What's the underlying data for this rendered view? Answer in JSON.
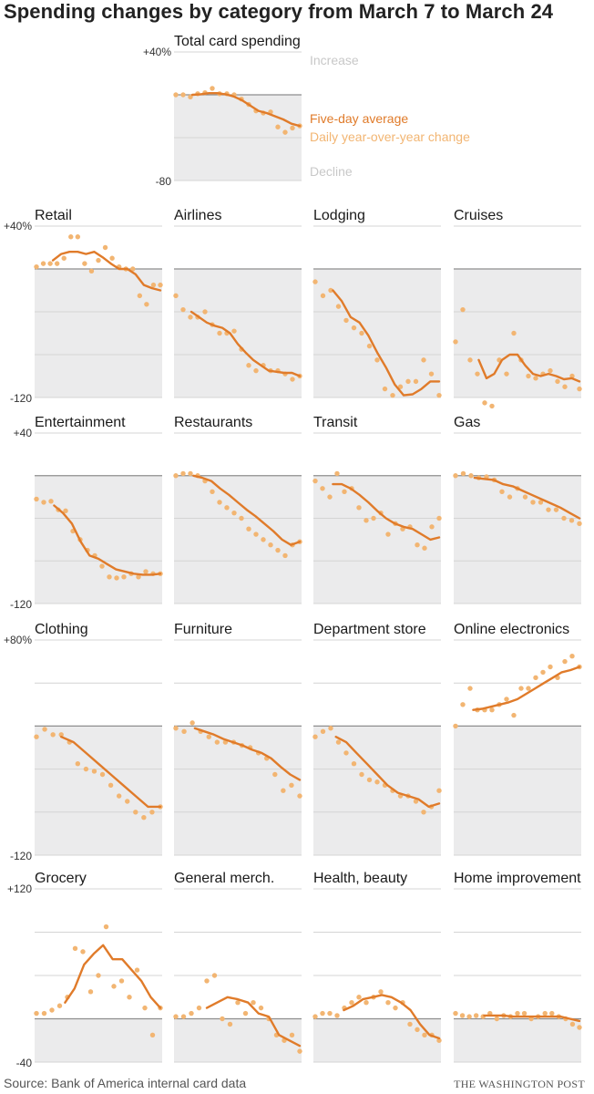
{
  "title": "Spending changes by category from March 7 to March 24",
  "source": "Source: Bank of America internal card data",
  "credit": "THE WASHINGTON POST",
  "colors": {
    "average_line": "#e07b2a",
    "daily_dots": "#f2b572",
    "decline_bg": "#ebebec",
    "zero_line": "#8e8e8e",
    "grid": "#d4d4d4",
    "legend_muted": "#c8c8c8"
  },
  "legend": {
    "increase": "Increase",
    "average": "Five-day average",
    "daily": "Daily year-over-year change",
    "decline": "Decline"
  },
  "chart_data": [
    {
      "type": "line",
      "title": "Total card spending",
      "ylim": [
        -80,
        40
      ],
      "ticks": [
        "+40%",
        "-80"
      ],
      "daily": [
        0,
        0,
        -2,
        1,
        2,
        6,
        1,
        1,
        0,
        -4,
        -9,
        -15,
        -17,
        -16,
        -30,
        -35,
        -31,
        -29
      ],
      "avg": [
        null,
        null,
        0,
        0.5,
        1.5,
        1.5,
        0.5,
        -1.5,
        -5,
        -10,
        -15,
        -17,
        -20,
        -23,
        -27,
        -29
      ]
    },
    {
      "type": "line",
      "title": "Retail",
      "ylim": [
        -120,
        40
      ],
      "ticks": [
        "+40%",
        "-120"
      ],
      "daily": [
        2,
        5,
        5,
        5,
        10,
        30,
        30,
        5,
        -2,
        8,
        20,
        10,
        2,
        0,
        0,
        -25,
        -33,
        -15,
        -15
      ],
      "avg": [
        null,
        null,
        8,
        14,
        16,
        16,
        14,
        16,
        11,
        5,
        0,
        0,
        -5,
        -15,
        -18,
        -20
      ]
    },
    {
      "type": "line",
      "title": "Airlines",
      "ylim": [
        -120,
        40
      ],
      "ticks": [],
      "daily": [
        -25,
        -38,
        -45,
        -45,
        -40,
        -52,
        -60,
        -60,
        -58,
        -75,
        -90,
        -95,
        -90,
        -95,
        -95,
        -98,
        -103,
        -100
      ],
      "avg": [
        null,
        null,
        -40,
        -45,
        -50,
        -53,
        -55,
        -60,
        -70,
        -78,
        -85,
        -90,
        -95,
        -96,
        -97,
        -97,
        -100
      ]
    },
    {
      "type": "line",
      "title": "Lodging",
      "ylim": [
        -120,
        40
      ],
      "ticks": [],
      "daily": [
        -12,
        -25,
        -20,
        -35,
        -48,
        -55,
        -60,
        -72,
        -85,
        -112,
        -118,
        -110,
        -105,
        -105,
        -85,
        -98,
        -118
      ],
      "avg": [
        null,
        null,
        -20,
        -30,
        -45,
        -50,
        -62,
        -78,
        -92,
        -108,
        -118,
        -117,
        -112,
        -105,
        -105
      ]
    },
    {
      "type": "line",
      "title": "Cruises",
      "ylim": [
        -120,
        40
      ],
      "ticks": [],
      "daily": [
        -68,
        -38,
        -85,
        -98,
        -125,
        -128,
        -85,
        -98,
        -60,
        -85,
        -100,
        -102,
        -98,
        -95,
        -105,
        -110,
        -100,
        -112
      ],
      "avg": [
        null,
        null,
        null,
        -85,
        -102,
        -98,
        -85,
        -80,
        -80,
        -90,
        -98,
        -100,
        -98,
        -100,
        -103,
        -102,
        -105
      ]
    },
    {
      "type": "line",
      "title": "Entertainment",
      "ylim": [
        -120,
        40
      ],
      "ticks": [
        "+40",
        "-120"
      ],
      "daily": [
        -22,
        -25,
        -24,
        -32,
        -33,
        -52,
        -60,
        -70,
        -75,
        -85,
        -95,
        -96,
        -95,
        -92,
        -95,
        -90,
        -92,
        -92
      ],
      "avg": [
        null,
        null,
        -28,
        -35,
        -45,
        -62,
        -75,
        -78,
        -83,
        -88,
        -90,
        -92,
        -93,
        -93,
        -92
      ]
    },
    {
      "type": "line",
      "title": "Restaurants",
      "ylim": [
        -120,
        40
      ],
      "ticks": [],
      "daily": [
        0,
        2,
        2,
        0,
        -5,
        -15,
        -25,
        -30,
        -35,
        -40,
        -50,
        -55,
        -60,
        -65,
        -70,
        -75,
        -65,
        -62
      ],
      "avg": [
        null,
        null,
        0,
        -2,
        -5,
        -12,
        -18,
        -25,
        -32,
        -38,
        -45,
        -52,
        -60,
        -65,
        -62
      ]
    },
    {
      "type": "line",
      "title": "Transit",
      "ylim": [
        -120,
        40
      ],
      "ticks": [],
      "daily": [
        -5,
        -12,
        -20,
        2,
        -15,
        -12,
        -30,
        -42,
        -40,
        -35,
        -55,
        -45,
        -50,
        -48,
        -65,
        -68,
        -48,
        -40
      ],
      "avg": [
        null,
        null,
        -8,
        -8,
        -12,
        -18,
        -25,
        -33,
        -40,
        -45,
        -48,
        -50,
        -55,
        -60,
        -58
      ]
    },
    {
      "type": "line",
      "title": "Gas",
      "ylim": [
        -120,
        40
      ],
      "ticks": [],
      "daily": [
        0,
        2,
        0,
        -2,
        -1,
        -4,
        -15,
        -20,
        -12,
        -20,
        -25,
        -25,
        -32,
        -32,
        -40,
        -42,
        -45
      ],
      "avg": [
        null,
        null,
        -2,
        -3,
        -4,
        -8,
        -10,
        -14,
        -18,
        -22,
        -26,
        -30,
        -35,
        -40
      ]
    },
    {
      "type": "line",
      "title": "Clothing",
      "ylim": [
        -120,
        80
      ],
      "ticks": [
        "+80%",
        "-120"
      ],
      "daily": [
        -10,
        -3,
        -8,
        -8,
        -15,
        -35,
        -40,
        -42,
        -45,
        -55,
        -65,
        -70,
        -80,
        -85,
        -80,
        -75
      ],
      "avg": [
        null,
        null,
        -10,
        -15,
        -25,
        -35,
        -45,
        -55,
        -65,
        -75,
        -75
      ]
    },
    {
      "type": "line",
      "title": "Furniture",
      "ylim": [
        -120,
        80
      ],
      "ticks": [],
      "daily": [
        -2,
        -5,
        3,
        -5,
        -10,
        -15,
        -15,
        -15,
        -18,
        -20,
        -25,
        -30,
        -45,
        -60,
        -55,
        -65
      ],
      "avg": [
        null,
        null,
        -2,
        -5,
        -8,
        -12,
        -15,
        -18,
        -22,
        -25,
        -30,
        -38,
        -45,
        -50
      ]
    },
    {
      "type": "line",
      "title": "Department store",
      "ylim": [
        -120,
        80
      ],
      "ticks": [],
      "daily": [
        -10,
        -5,
        -2,
        -15,
        -25,
        -35,
        -45,
        -50,
        -52,
        -55,
        -60,
        -65,
        -65,
        -70,
        -80,
        -75,
        -60
      ],
      "avg": [
        null,
        null,
        -10,
        -15,
        -25,
        -35,
        -45,
        -55,
        -62,
        -65,
        -68,
        -75,
        -72
      ]
    },
    {
      "type": "line",
      "title": "Online electronics",
      "ylim": [
        -120,
        80
      ],
      "ticks": [],
      "daily": [
        0,
        20,
        35,
        15,
        15,
        15,
        20,
        25,
        10,
        35,
        35,
        45,
        50,
        55,
        45,
        60,
        65,
        55
      ],
      "avg": [
        null,
        null,
        15,
        16,
        18,
        20,
        22,
        25,
        30,
        35,
        40,
        45,
        50,
        52,
        55
      ]
    },
    {
      "type": "line",
      "title": "Grocery",
      "ylim": [
        -40,
        120
      ],
      "ticks": [
        "+120",
        "-40"
      ],
      "daily": [
        5,
        5,
        8,
        12,
        20,
        65,
        62,
        25,
        40,
        85,
        30,
        35,
        20,
        45,
        10,
        -15,
        10
      ],
      "avg": [
        null,
        null,
        null,
        15,
        28,
        50,
        60,
        68,
        55,
        55,
        45,
        35,
        20,
        10
      ]
    },
    {
      "type": "line",
      "title": "General merch.",
      "ylim": [
        -40,
        120
      ],
      "ticks": [],
      "daily": [
        2,
        2,
        5,
        10,
        35,
        40,
        0,
        -5,
        15,
        5,
        15,
        10,
        0,
        -15,
        -20,
        -15,
        -30
      ],
      "avg": [
        null,
        null,
        null,
        10,
        15,
        20,
        18,
        15,
        5,
        2,
        -15,
        -20,
        -25
      ]
    },
    {
      "type": "line",
      "title": "Health, beauty",
      "ylim": [
        -40,
        120
      ],
      "ticks": [],
      "daily": [
        2,
        5,
        5,
        3,
        10,
        15,
        20,
        15,
        20,
        25,
        15,
        10,
        15,
        -5,
        -10,
        -15,
        -15,
        -20
      ],
      "avg": [
        null,
        null,
        null,
        8,
        12,
        18,
        20,
        22,
        20,
        15,
        8,
        -5,
        -15,
        -18
      ]
    },
    {
      "type": "line",
      "title": "Home improvement",
      "ylim": [
        -40,
        120
      ],
      "ticks": [],
      "daily": [
        5,
        3,
        2,
        3,
        2,
        5,
        0,
        3,
        2,
        5,
        5,
        0,
        2,
        5,
        5,
        2,
        0,
        -5,
        -8
      ],
      "avg": [
        null,
        null,
        null,
        3,
        3,
        3,
        2,
        2,
        2,
        2,
        2,
        2,
        0,
        -2
      ]
    }
  ]
}
